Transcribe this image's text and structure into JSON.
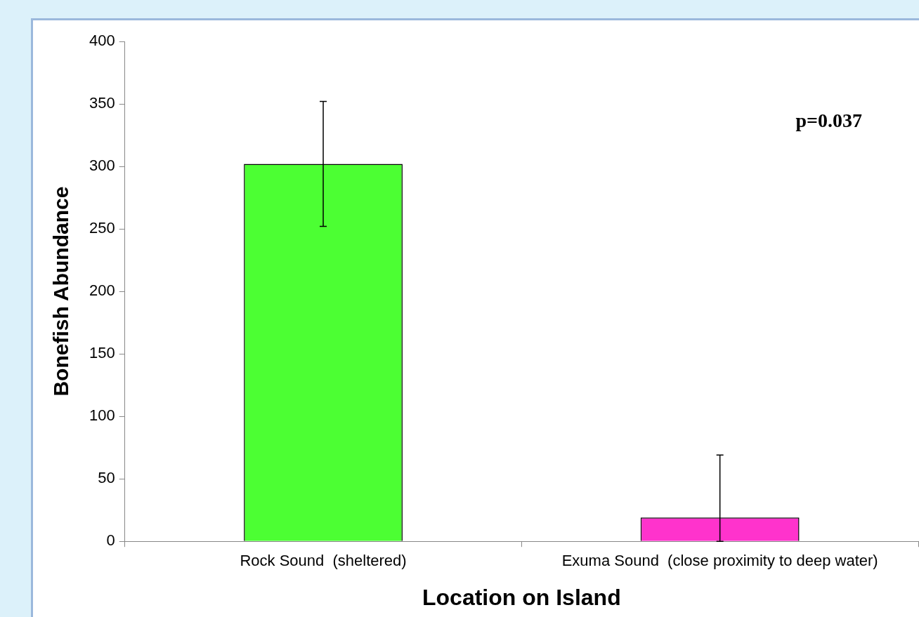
{
  "chart_data": {
    "type": "bar",
    "xlabel": "Location on Island",
    "ylabel": "Bonefish Abundance",
    "categories": [
      "Rock Sound  (sheltered)",
      "Exuma Sound  (close proximity to deep water)"
    ],
    "values": [
      302,
      19
    ],
    "colors": [
      "#4cff33",
      "#ff33cc"
    ],
    "errors": [
      [
        252,
        352
      ],
      [
        0,
        69
      ]
    ],
    "ylim": [
      0,
      400
    ],
    "yticks": [
      0,
      50,
      100,
      150,
      200,
      250,
      300,
      350,
      400
    ],
    "annotations": [
      "p=0.037"
    ]
  }
}
